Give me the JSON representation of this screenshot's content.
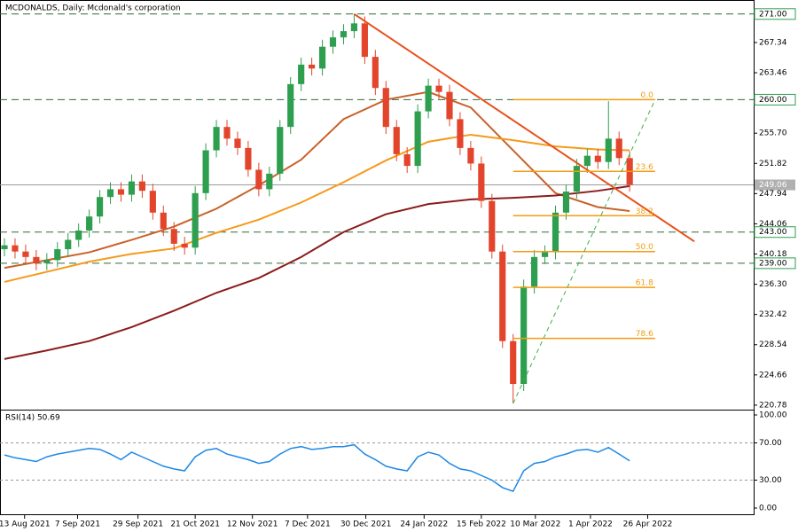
{
  "chart_data": [
    {
      "type": "candlestick",
      "title": "MCDONALDS, Daily:  Mcdonald's corporation",
      "open": [
        240.8,
        241.3,
        240.5,
        239.8,
        239.0,
        239.4,
        240.8,
        242.0,
        243.2,
        245.0,
        247.5,
        248.5,
        247.8,
        249.5,
        248.3,
        245.5,
        243.4,
        241.5,
        241.0,
        248.0,
        253.5,
        256.5,
        255.0,
        253.8,
        251.0,
        248.5,
        250.5,
        256.5,
        262.0,
        264.5,
        264.0,
        266.8,
        268.0,
        268.8,
        269.8,
        265.5,
        261.5,
        256.5,
        253.0,
        251.5,
        258.5,
        261.8,
        261.0,
        257.5,
        253.8,
        251.8,
        247.0,
        240.5,
        229.0,
        223.5,
        236.0,
        239.8,
        240.4,
        245.5,
        248.2,
        251.5,
        252.8,
        252.0,
        255.0,
        252.5
      ],
      "high": [
        242.2,
        242.2,
        241.4,
        240.7,
        240.3,
        241.7,
        242.9,
        244.1,
        245.9,
        248.4,
        249.4,
        249.4,
        250.4,
        250.4,
        249.2,
        246.4,
        244.3,
        242.4,
        248.9,
        254.4,
        257.4,
        257.4,
        255.9,
        254.7,
        251.9,
        251.4,
        257.4,
        262.9,
        265.4,
        265.4,
        267.7,
        268.9,
        269.7,
        271.0,
        270.7,
        266.4,
        262.4,
        257.4,
        253.9,
        259.4,
        262.7,
        262.7,
        261.9,
        258.4,
        254.7,
        252.7,
        247.9,
        241.4,
        229.9,
        236.9,
        240.7,
        241.3,
        246.4,
        249.1,
        252.4,
        253.7,
        253.7,
        259.8,
        255.9,
        253.4
      ],
      "low": [
        239.9,
        239.6,
        238.9,
        238.1,
        238.1,
        238.5,
        239.9,
        241.1,
        242.3,
        244.1,
        246.6,
        246.9,
        246.9,
        247.4,
        244.6,
        242.5,
        240.6,
        240.1,
        240.1,
        247.1,
        252.6,
        254.1,
        252.9,
        250.1,
        247.6,
        247.6,
        249.6,
        255.6,
        261.1,
        263.1,
        263.1,
        265.9,
        267.1,
        267.9,
        264.6,
        260.6,
        255.6,
        252.1,
        250.6,
        250.6,
        257.6,
        260.1,
        256.6,
        252.9,
        250.9,
        246.1,
        239.6,
        228.1,
        221.0,
        222.6,
        235.1,
        238.9,
        239.5,
        244.6,
        247.3,
        250.6,
        251.1,
        251.1,
        251.6,
        248.2
      ],
      "close": [
        241.3,
        240.5,
        239.8,
        239.0,
        239.4,
        240.8,
        242.0,
        243.2,
        245.0,
        247.5,
        248.5,
        247.8,
        249.5,
        248.3,
        245.5,
        243.4,
        241.5,
        241.0,
        248.0,
        253.5,
        256.5,
        255.0,
        253.8,
        251.0,
        248.5,
        250.5,
        256.5,
        262.0,
        264.5,
        264.0,
        266.8,
        268.0,
        268.8,
        269.8,
        265.5,
        261.5,
        256.5,
        253.0,
        251.5,
        258.5,
        261.8,
        261.0,
        257.5,
        253.8,
        251.8,
        247.0,
        240.5,
        229.0,
        223.5,
        236.0,
        239.8,
        240.4,
        245.5,
        248.2,
        251.5,
        252.8,
        252.0,
        255.0,
        252.5,
        249.06
      ],
      "up_color": "#2e9e4f",
      "down_color": "#e2452b",
      "xlim": [
        -0.42,
        70.7
      ],
      "xticks": [
        {
          "value": 1.9,
          "label": "13 Aug 2021"
        },
        {
          "value": 6.9,
          "label": "7 Sep 2021"
        },
        {
          "value": 12.6,
          "label": "29 Sep 2021"
        },
        {
          "value": 18,
          "label": "21 Oct 2021"
        },
        {
          "value": 23.4,
          "label": "12 Nov 2021"
        },
        {
          "value": 28.6,
          "label": "7 Dec 2021"
        },
        {
          "value": 34.1,
          "label": "30 Dec 2021"
        },
        {
          "value": 39.6,
          "label": "24 Jan 2022"
        },
        {
          "value": 45,
          "label": "15 Feb 2022"
        },
        {
          "value": 50.1,
          "label": "10 Mar 2022"
        },
        {
          "value": 55.3,
          "label": "1 Apr 2022"
        },
        {
          "value": 60.7,
          "label": "26 Apr 2022"
        }
      ],
      "ylim": [
        220.2,
        272.8
      ],
      "yticks": [
        267.34,
        263.46,
        {
          "value": 255.7,
          "label": "255.70"
        },
        251.82,
        247.94,
        244.06,
        240.18,
        {
          "value": 236.3,
          "label": "236.30"
        },
        232.42,
        228.54,
        224.66,
        220.78
      ],
      "moving_averages": [
        {
          "color": "#c8622a",
          "x": [
            0,
            4,
            8,
            12,
            16,
            20,
            24,
            28,
            32,
            36,
            40,
            44,
            48,
            52,
            56,
            59
          ],
          "values": [
            238.4,
            239.4,
            240.4,
            242.0,
            243.7,
            246.0,
            249.0,
            252.3,
            257.5,
            260.0,
            261.0,
            259.0,
            253.5,
            248.0,
            246.2,
            245.7
          ]
        },
        {
          "color": "#f59a1b",
          "x": [
            0,
            4,
            8,
            12,
            16,
            20,
            24,
            28,
            32,
            36,
            40,
            44,
            48,
            52,
            56,
            59
          ],
          "values": [
            236.6,
            237.9,
            239.2,
            240.2,
            240.9,
            242.9,
            244.6,
            246.8,
            249.4,
            252.2,
            254.6,
            255.5,
            254.8,
            254.0,
            253.6,
            253.5
          ]
        },
        {
          "color": "#8b1c1c",
          "x": [
            0,
            4,
            8,
            12,
            16,
            20,
            24,
            28,
            32,
            36,
            40,
            44,
            48,
            52,
            56,
            59
          ],
          "values": [
            226.7,
            227.8,
            229.0,
            230.8,
            232.9,
            235.2,
            237.1,
            239.8,
            243.0,
            245.3,
            246.6,
            247.2,
            247.4,
            247.7,
            248.3,
            248.9
          ]
        }
      ],
      "levels": [
        {
          "value": 271,
          "label": "271.00"
        },
        {
          "value": 260,
          "label": "260.00"
        },
        {
          "value": 243,
          "label": "243.00"
        },
        {
          "value": 239,
          "label": "239.00"
        }
      ],
      "last_price": 249.06,
      "trendline": {
        "color": "#e8501c",
        "x": [
          33,
          65.1
        ],
        "values": [
          271.0,
          241.8
        ]
      },
      "fib_trend": {
        "color": "#3cb043",
        "x": [
          48,
          61.4
        ],
        "values": [
          221.0,
          260.0
        ]
      },
      "fib": {
        "color": "#f39c12",
        "levels": [
          {
            "value": 0,
            "label": "0.0"
          },
          23.6,
          38.2,
          {
            "value": 50,
            "label": "50.0"
          },
          61.8,
          78.6
        ]
      }
    },
    {
      "type": "line",
      "title": "RSI(14) 50.69",
      "color": "#1e88e5",
      "values": [
        57,
        54,
        52,
        50,
        55,
        58,
        60,
        62,
        64,
        63,
        58,
        52,
        60,
        55,
        50,
        45,
        42,
        40,
        55,
        62,
        64,
        58,
        55,
        52,
        48,
        50,
        58,
        64,
        66,
        63,
        64,
        66,
        66,
        68,
        58,
        52,
        45,
        42,
        40,
        55,
        60,
        57,
        48,
        42,
        40,
        35,
        30,
        22,
        18,
        40,
        48,
        50,
        55,
        58,
        62,
        63,
        60,
        65,
        58,
        50.69
      ],
      "ylim": [
        0,
        100
      ],
      "yticks": [
        {
          "value": 100,
          "label": "100.00"
        },
        {
          "value": 70,
          "label": "70.00"
        },
        {
          "value": 30,
          "label": "30.00"
        },
        {
          "value": 0,
          "label": "0.00"
        }
      ],
      "grid": true
    }
  ]
}
